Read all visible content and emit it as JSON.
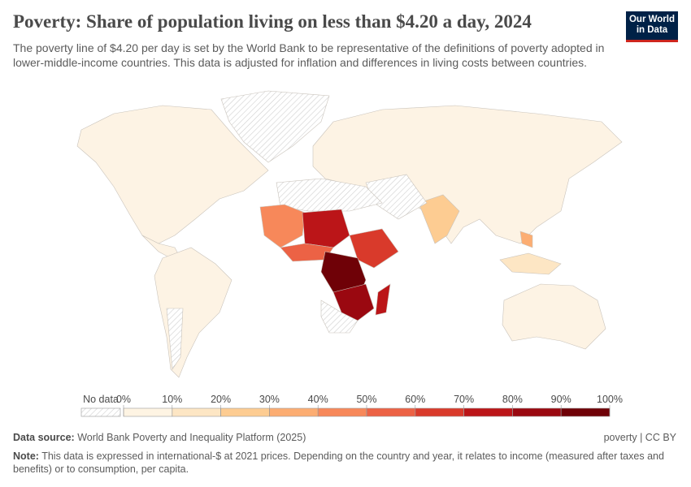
{
  "header": {
    "title": "Poverty: Share of population living on less than $4.20 a day, 2024",
    "subtitle": "The poverty line of $4.20 per day is set by the World Bank to be representative of the definitions of poverty adopted in lower-middle-income countries. This data is adjusted for inflation and differences in living costs between countries.",
    "logo": [
      "Our World",
      "in Data"
    ]
  },
  "legend": {
    "no_data": "No data",
    "ticks": [
      {
        "value": 0,
        "label": "0%"
      },
      {
        "value": 10,
        "label": "10%"
      },
      {
        "value": 20,
        "label": "20%"
      },
      {
        "value": 30,
        "label": "30%"
      },
      {
        "value": 40,
        "label": "40%"
      },
      {
        "value": 50,
        "label": "50%"
      },
      {
        "value": 60,
        "label": "60%"
      },
      {
        "value": 70,
        "label": "70%"
      },
      {
        "value": 80,
        "label": "80%"
      },
      {
        "value": 90,
        "label": "90%"
      },
      {
        "value": 100,
        "label": "100%"
      }
    ],
    "colors": [
      "#fef4e3",
      "#fde6c4",
      "#fdcc92",
      "#fcad72",
      "#f7885a",
      "#ec6245",
      "#d93a2b",
      "#bb1518",
      "#9a0810",
      "#6f0107"
    ]
  },
  "footer": {
    "source_label": "Data source:",
    "source": "World Bank Poverty and Inequality Platform (2025)",
    "license": "poverty | CC BY",
    "note_label": "Note:",
    "note": "This data is expressed in international-$ at 2021 prices. Depending on the country and year, it relates to income (measured after taxes and benefits) or to consumption, per capita."
  }
}
